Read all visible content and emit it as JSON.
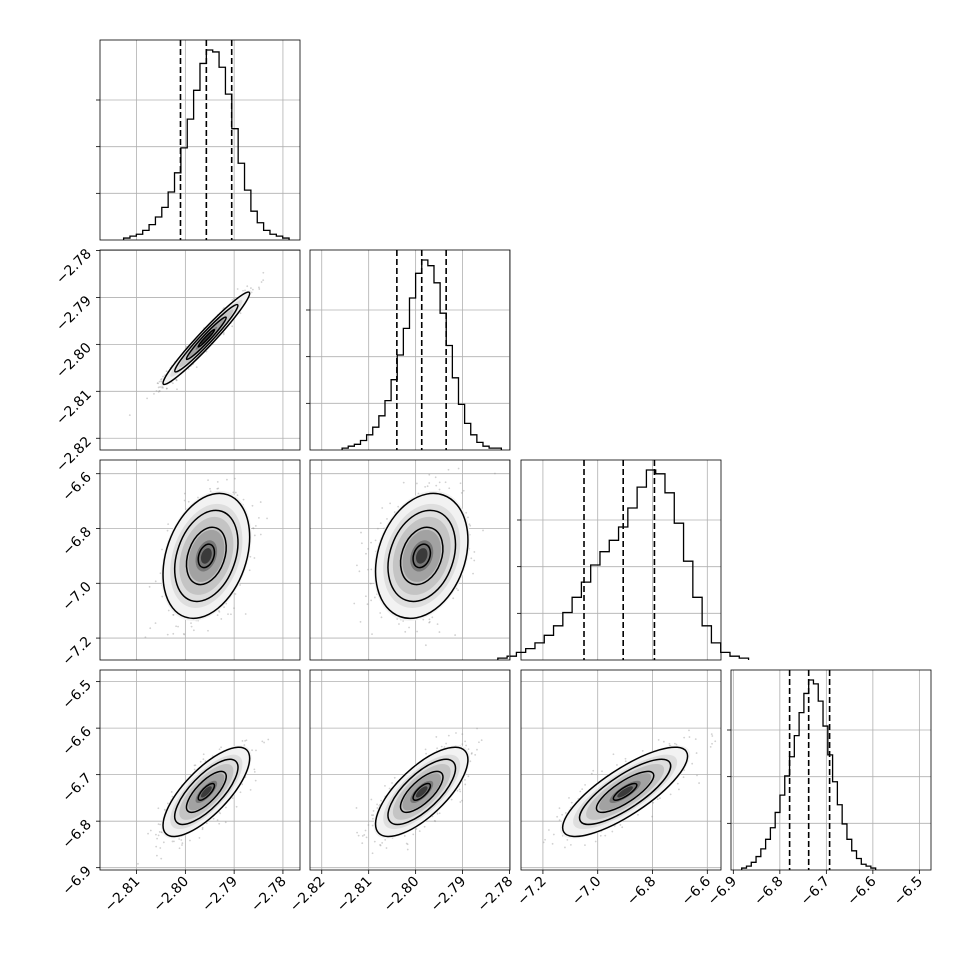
{
  "chart_data": {
    "type": "corner",
    "grid": true,
    "variables": [
      {
        "ticks": [
          -2.81,
          -2.8,
          -2.79,
          -2.78
        ],
        "ticklabels": [
          "−2.81",
          "−2.80",
          "−2.79",
          "−2.78"
        ],
        "range": [
          -2.8175,
          -2.7765
        ]
      },
      {
        "ticks": [
          -2.82,
          -2.81,
          -2.8,
          -2.79,
          -2.78
        ],
        "ticklabels": [
          "−2.82",
          "−2.81",
          "−2.80",
          "−2.79",
          "−2.78"
        ],
        "range": [
          -2.8225,
          -2.7799
        ]
      },
      {
        "ticks": [
          -7.2,
          -7.0,
          -6.8,
          -6.6
        ],
        "ticklabels": [
          "−7.2",
          "−7.0",
          "−6.8",
          "−6.6"
        ],
        "range": [
          -7.28,
          -6.55
        ]
      },
      {
        "ticks": [
          -6.9,
          -6.8,
          -6.7,
          -6.6,
          -6.5
        ],
        "ticklabels": [
          "−6.9",
          "−6.8",
          "−6.7",
          "−6.6",
          "−6.5"
        ],
        "range": [
          -6.905,
          -6.475
        ]
      }
    ],
    "histograms": [
      {
        "quantiles": [
          -2.801,
          -2.7957,
          -2.7905
        ],
        "counts": [
          1,
          2,
          3,
          5,
          8,
          12,
          17,
          25,
          35,
          48,
          63,
          78,
          92,
          99,
          98,
          90,
          76,
          58,
          40,
          26,
          15,
          9,
          5,
          3,
          2,
          1
        ]
      },
      {
        "quantiles": [
          -2.804,
          -2.7987,
          -2.7935
        ],
        "counts": [
          1,
          2,
          3,
          5,
          8,
          12,
          18,
          26,
          37,
          50,
          64,
          80,
          93,
          100,
          97,
          88,
          72,
          55,
          38,
          24,
          14,
          8,
          4,
          2,
          1,
          1
        ]
      },
      {
        "quantiles": [
          -7.05,
          -6.907,
          -6.793
        ],
        "counts": [
          1,
          2,
          4,
          6,
          9,
          13,
          18,
          25,
          33,
          41,
          50,
          57,
          63,
          70,
          80,
          91,
          100,
          98,
          88,
          72,
          52,
          33,
          18,
          9,
          4,
          2,
          1
        ]
      },
      {
        "quantiles": [
          -6.779,
          -6.738,
          -6.693
        ],
        "counts": [
          1,
          2,
          4,
          7,
          11,
          16,
          22,
          30,
          39,
          49,
          59,
          70,
          82,
          92,
          99,
          97,
          88,
          75,
          60,
          46,
          34,
          24,
          16,
          10,
          6,
          3,
          2,
          1
        ]
      }
    ],
    "pairs": [
      {
        "row": 1,
        "col": 0,
        "mean": [
          -2.7957,
          -2.7987
        ],
        "sd": [
          0.0037,
          0.0041
        ],
        "rho": 0.97
      },
      {
        "row": 2,
        "col": 0,
        "mean": [
          -2.7957,
          -6.9
        ],
        "sd": [
          0.0037,
          0.095
        ],
        "rho": 0.3
      },
      {
        "row": 2,
        "col": 1,
        "mean": [
          -2.7987,
          -6.9
        ],
        "sd": [
          0.0041,
          0.095
        ],
        "rho": 0.25
      },
      {
        "row": 3,
        "col": 0,
        "mean": [
          -2.7957,
          -6.737
        ],
        "sd": [
          0.0037,
          0.04
        ],
        "rho": 0.75
      },
      {
        "row": 3,
        "col": 1,
        "mean": [
          -2.7987,
          -6.737
        ],
        "sd": [
          0.0041,
          0.04
        ],
        "rho": 0.72
      },
      {
        "row": 3,
        "col": 2,
        "mean": [
          -6.9,
          -6.737
        ],
        "sd": [
          0.095,
          0.04
        ],
        "rho": 0.8
      }
    ]
  }
}
